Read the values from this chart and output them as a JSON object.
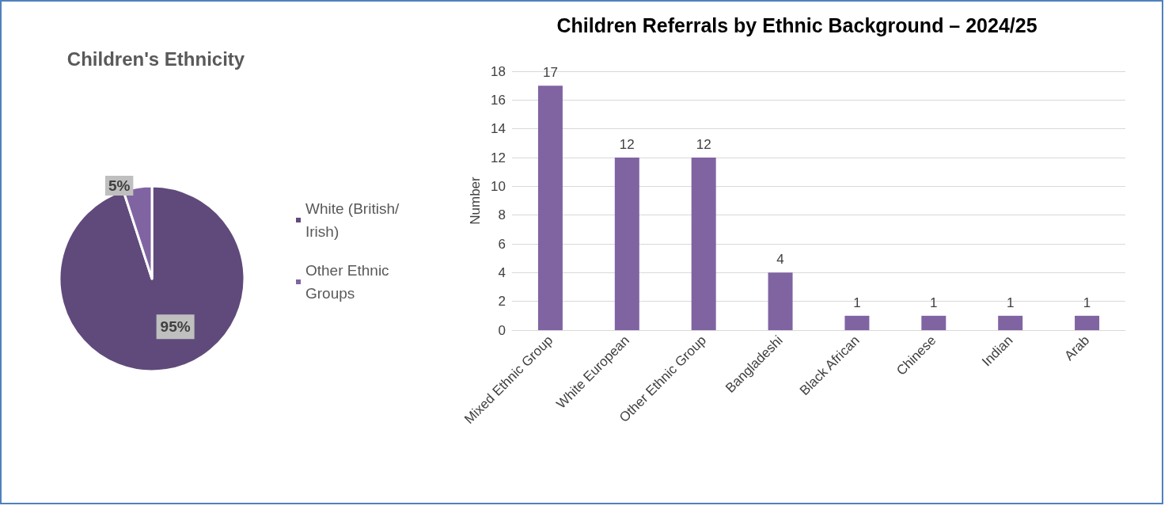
{
  "chart_data": [
    {
      "type": "pie",
      "title": "Children's Ethnicity",
      "categories": [
        "White (British/Irish)",
        "Other Ethnic Groups"
      ],
      "values": [
        95,
        5
      ],
      "colors": [
        "#604a7b",
        "#8064a2"
      ],
      "value_labels": [
        "95%",
        "5%"
      ],
      "legend": "right"
    },
    {
      "type": "bar",
      "title": "Children Referrals by Ethnic Background – 2024/25",
      "ylabel": "Number",
      "categories": [
        "Mixed Ethnic Group",
        "White European",
        "Other Ethnic Group",
        "Bangladeshi",
        "Black African",
        "Chinese",
        "Indian",
        "Arab"
      ],
      "values": [
        17,
        12,
        12,
        4,
        1,
        1,
        1,
        1
      ],
      "color": "#8064a2",
      "ylim": [
        0,
        18
      ],
      "yticks": [
        0,
        2,
        4,
        6,
        8,
        10,
        12,
        14,
        16,
        18
      ],
      "grid": "y",
      "data_labels": true,
      "legend": false
    }
  ]
}
